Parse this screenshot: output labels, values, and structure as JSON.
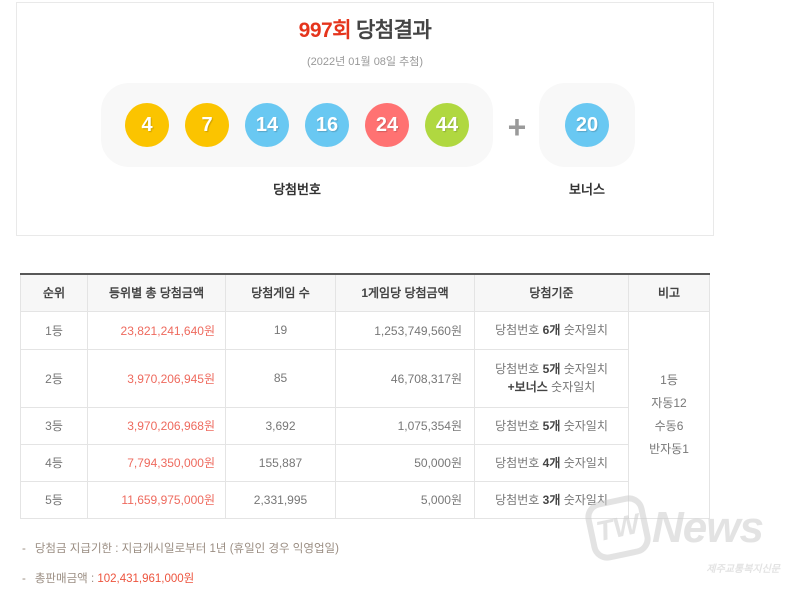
{
  "colors": {
    "title_red": "#e5341c",
    "amount_red": "#ee6a5e",
    "note_red": "#ed543e",
    "ball_yellow": "#fbc400",
    "ball_blue": "#69c8f2",
    "ball_red": "#ff7272",
    "ball_green": "#b0d840"
  },
  "header": {
    "round": "997회",
    "title": "당첨결과",
    "draw_date": "(2022년 01월 08일 추첨)",
    "plus": "+",
    "winning_label": "당첨번호",
    "bonus_label": "보너스"
  },
  "balls": {
    "main": [
      {
        "number": "4",
        "color": "#fbc400"
      },
      {
        "number": "7",
        "color": "#fbc400"
      },
      {
        "number": "14",
        "color": "#69c8f2"
      },
      {
        "number": "16",
        "color": "#69c8f2"
      },
      {
        "number": "24",
        "color": "#ff7272"
      },
      {
        "number": "44",
        "color": "#b0d840"
      }
    ],
    "bonus": {
      "number": "20",
      "color": "#69c8f2"
    }
  },
  "table": {
    "headers": [
      "순위",
      "등위별 총 당첨금액",
      "당첨게임 수",
      "1게임당 당첨금액",
      "당첨기준",
      "비고"
    ],
    "rows": [
      {
        "rank": "1등",
        "total_amount": "23,821,241,640원",
        "game_count": "19",
        "amount_per_game": "1,253,749,560원",
        "criteria": [
          {
            "pre": "당첨번호 ",
            "bold": "6개",
            "post": " 숫자일치"
          }
        ]
      },
      {
        "rank": "2등",
        "total_amount": "3,970,206,945원",
        "game_count": "85",
        "amount_per_game": "46,708,317원",
        "criteria": [
          {
            "pre": "당첨번호 ",
            "bold": "5개",
            "post": " 숫자일치"
          },
          {
            "pre": "",
            "bold": "+보너스",
            "post": " 숫자일치"
          }
        ]
      },
      {
        "rank": "3등",
        "total_amount": "3,970,206,968원",
        "game_count": "3,692",
        "amount_per_game": "1,075,354원",
        "criteria": [
          {
            "pre": "당첨번호 ",
            "bold": "5개",
            "post": " 숫자일치"
          }
        ]
      },
      {
        "rank": "4등",
        "total_amount": "7,794,350,000원",
        "game_count": "155,887",
        "amount_per_game": "50,000원",
        "criteria": [
          {
            "pre": "당첨번호 ",
            "bold": "4개",
            "post": " 숫자일치"
          }
        ]
      },
      {
        "rank": "5등",
        "total_amount": "11,659,975,000원",
        "game_count": "2,331,995",
        "amount_per_game": "5,000원",
        "criteria": [
          {
            "pre": "당첨번호 ",
            "bold": "3개",
            "post": " 숫자일치"
          }
        ]
      }
    ],
    "remark_lines": [
      "1등",
      "자동12",
      "수동6",
      "반자동1"
    ]
  },
  "footnotes": {
    "dash": "-",
    "payment": "당첨금 지급기한 : 지급개시일로부터 1년 (휴일인 경우 익영업일)",
    "sales_label": "총판매금액 : ",
    "sales_amount": "102,431,961,000원"
  },
  "watermark": {
    "logo": "TW",
    "name": "News",
    "subtitle": "제주교통복지신문"
  }
}
